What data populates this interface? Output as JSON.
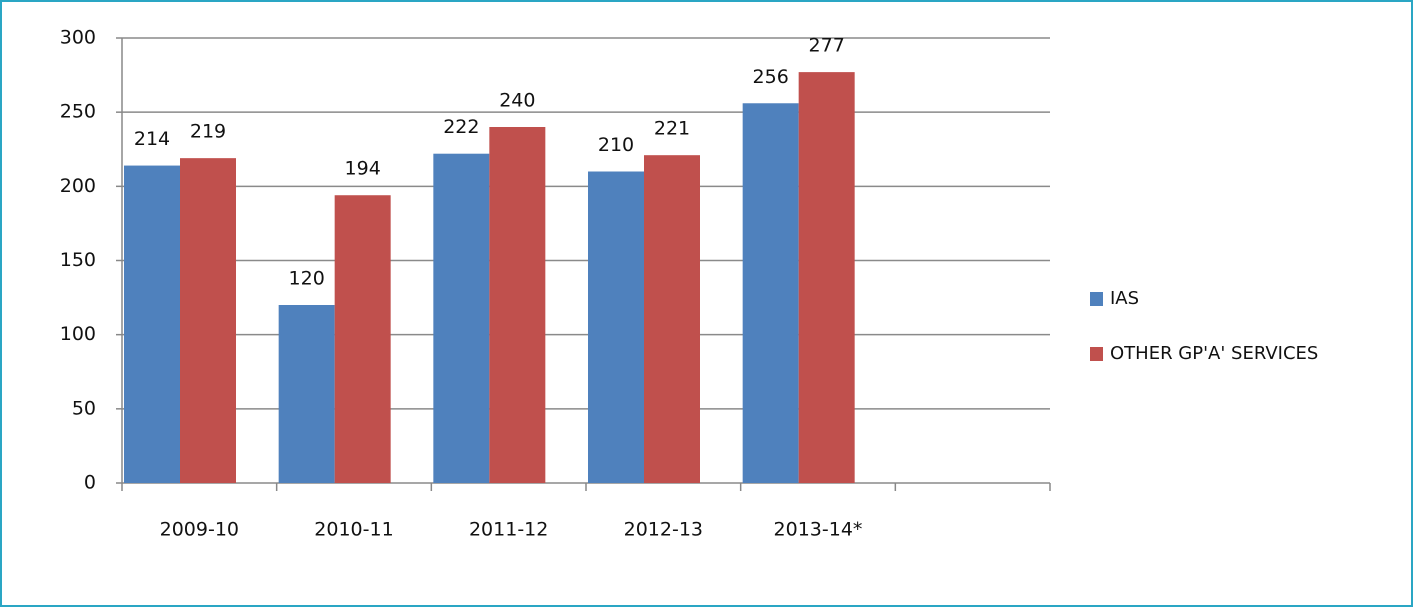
{
  "chart_data": {
    "type": "bar",
    "categories": [
      "2009-10",
      "2010-11",
      "2011-12",
      "2012-13",
      "2013-14*",
      null
    ],
    "series": [
      {
        "name": "IAS",
        "color": "#4f81bd",
        "values": [
          214,
          120,
          222,
          210,
          256,
          null
        ]
      },
      {
        "name": "OTHER GP'A' SERVICES",
        "color": "#c0504d",
        "values": [
          219,
          194,
          240,
          221,
          277,
          null
        ]
      }
    ],
    "ylim": [
      0,
      300
    ],
    "yticks": [
      0,
      50,
      100,
      150,
      200,
      250,
      300
    ],
    "grid": true,
    "legend": "right"
  }
}
